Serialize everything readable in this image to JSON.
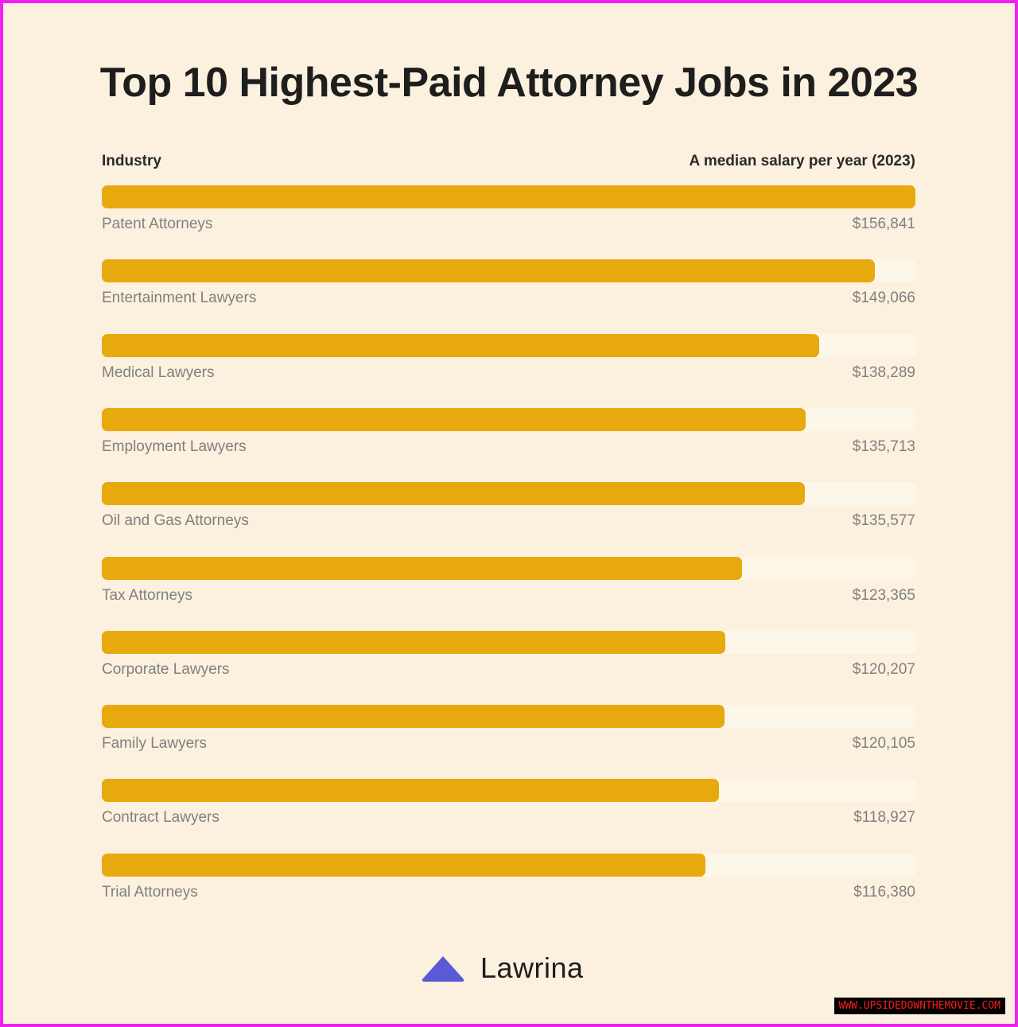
{
  "chart_data": {
    "type": "bar",
    "orientation": "horizontal",
    "title": "Top 10 Highest-Paid Attorney Jobs in 2023",
    "category_header": "Industry",
    "value_header": "A median salary per year (2023)",
    "categories": [
      "Patent Attorneys",
      "Entertainment Lawyers",
      "Medical Lawyers",
      "Employment Lawyers",
      "Oil and Gas Attorneys",
      "Tax Attorneys",
      "Corporate Lawyers",
      "Family Lawyers",
      "Contract Lawyers",
      "Trial Attorneys"
    ],
    "values": [
      156841,
      149066,
      138289,
      135713,
      135577,
      123365,
      120207,
      120105,
      118927,
      116380
    ],
    "value_labels": [
      "$156,841",
      "$149,066",
      "$138,289",
      "$135,713",
      "$135,577",
      "$123,365",
      "$120,207",
      "$120,105",
      "$118,927",
      "$116,380"
    ],
    "xlim": [
      0,
      156841
    ],
    "grid": false,
    "colors": {
      "bar": "#e8a90e",
      "track": "#fdf7ea",
      "background": "#fbf1de"
    }
  },
  "brand": {
    "name": "Lawrina",
    "logo_color": "#5a5ad6"
  },
  "watermark": "WWW.UPSIDEDOWNTHEMOVIE.COM"
}
